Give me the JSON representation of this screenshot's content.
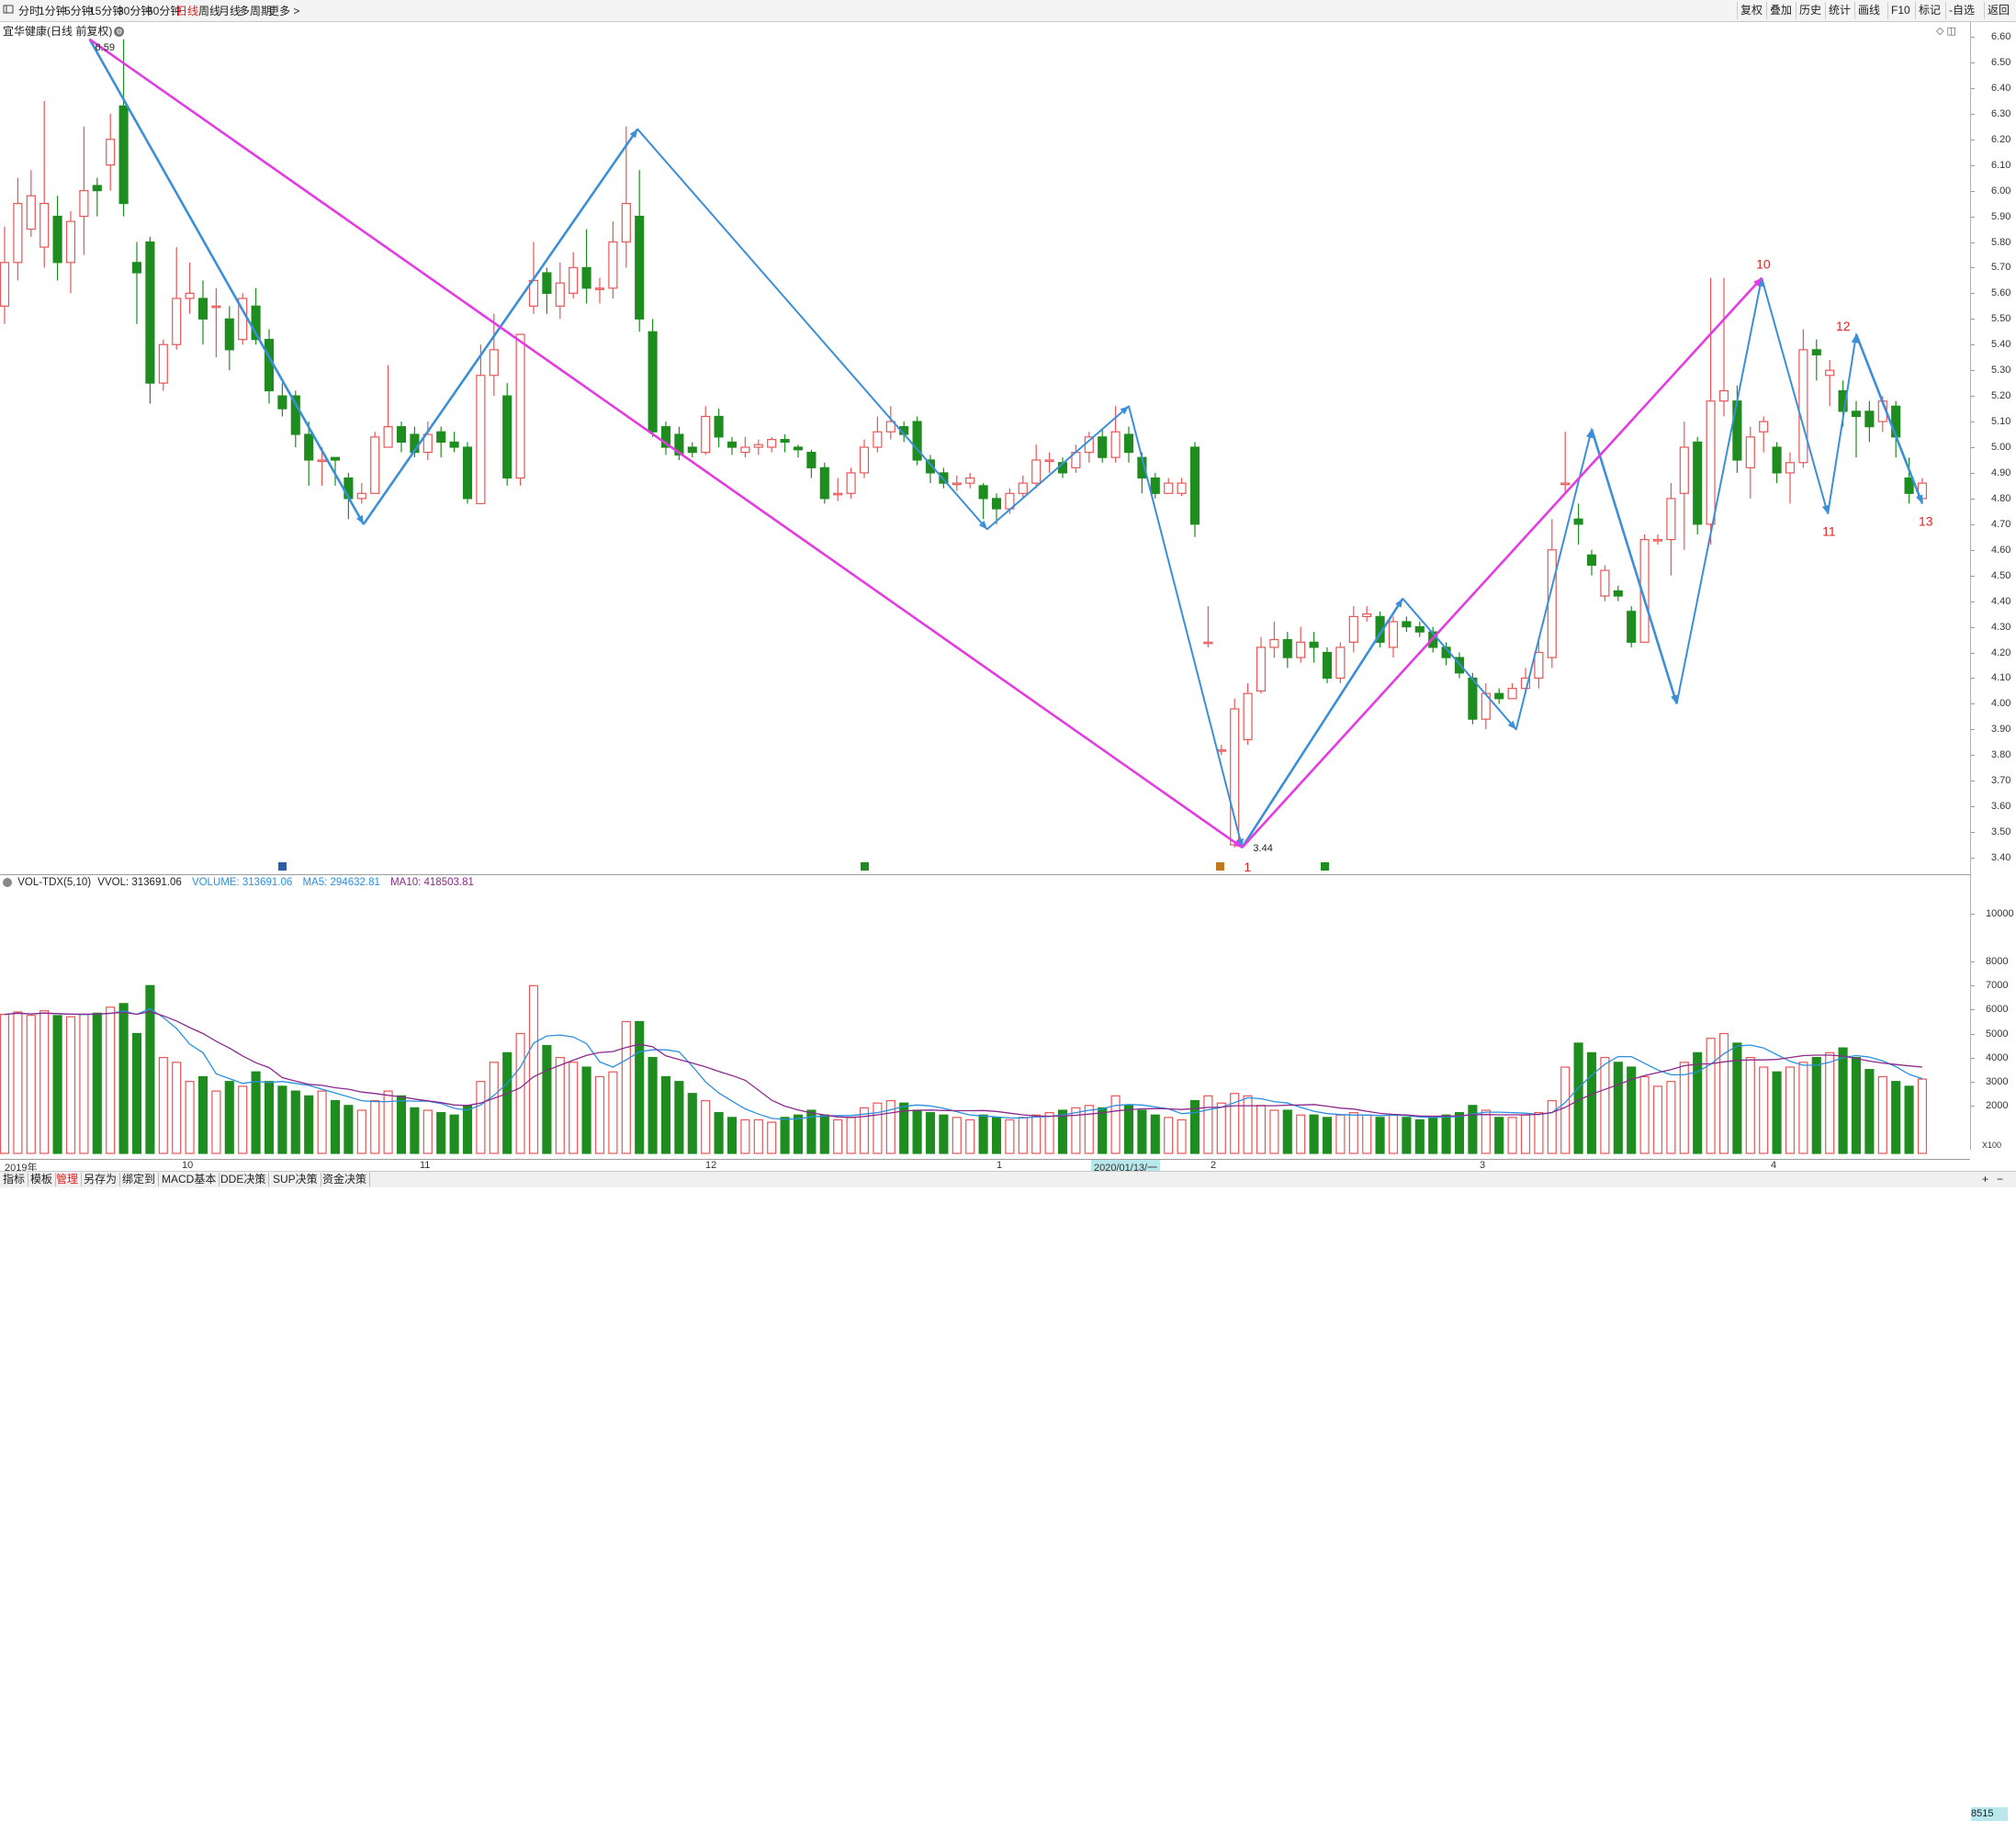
{
  "toolbar": {
    "left": [
      {
        "label": "分时",
        "active": false
      },
      {
        "label": "1分钟",
        "active": false
      },
      {
        "label": "5分钟",
        "active": false
      },
      {
        "label": "15分钟",
        "active": false
      },
      {
        "label": "30分钟",
        "active": false
      },
      {
        "label": "60分钟",
        "active": false
      },
      {
        "label": "日线",
        "active": true
      },
      {
        "label": "周线",
        "active": false
      },
      {
        "label": "月线",
        "active": false
      },
      {
        "label": "多周期",
        "active": false
      },
      {
        "label": "更多 >",
        "active": false
      }
    ],
    "right": [
      "复权",
      "叠加",
      "历史",
      "统计",
      "画线",
      "F10",
      "标记",
      "-自选",
      "返回"
    ]
  },
  "stock_title": "宜华健康(日线 前复权)",
  "price_axis_ticks": [
    "6.60",
    "6.50",
    "6.40",
    "6.30",
    "6.20",
    "6.10",
    "6.00",
    "5.90",
    "5.80",
    "5.70",
    "5.60",
    "5.50",
    "5.40",
    "5.30",
    "5.20",
    "5.10",
    "5.00",
    "4.90",
    "4.80",
    "4.70",
    "4.60",
    "4.50",
    "4.40",
    "4.30",
    "4.20",
    "4.10",
    "4.00",
    "3.90",
    "3.80",
    "3.70",
    "3.60",
    "3.50",
    "3.40"
  ],
  "annotations": {
    "high_label": "6.59",
    "low_label": "3.44",
    "wave_points": [
      "1",
      "10",
      "11",
      "12",
      "13"
    ]
  },
  "volume_header": {
    "name": "VOL-TDX(5,10)",
    "vvol": "VVOL: 313691.06",
    "volume": "VOLUME: 313691.06",
    "ma5": "MA5: 294632.81",
    "ma10": "MA10: 418503.81"
  },
  "volume_axis_ticks": [
    "10000",
    "8000",
    "7000",
    "6000",
    "5000",
    "4000",
    "3000",
    "2000"
  ],
  "volume_axis_current": "8515",
  "volume_axis_unit": "X100",
  "date_axis": {
    "labels": [
      "2019年",
      "10",
      "11",
      "12",
      "1",
      "2",
      "3",
      "4"
    ],
    "highlight": "2020/01/13/一"
  },
  "bottom_tabs": [
    {
      "label": "指标",
      "active": false
    },
    {
      "label": "模板",
      "active": false
    },
    {
      "label": "管理",
      "active": true
    },
    {
      "label": "另存为",
      "active": false
    },
    {
      "label": "绑定到",
      "active": false
    },
    {
      "label": "MACD基本",
      "active": false
    },
    {
      "label": "DDE决策",
      "active": false
    },
    {
      "label": "SUP决策",
      "active": false
    },
    {
      "label": "资金决策",
      "active": false
    }
  ],
  "colors": {
    "up": "#e85656",
    "down": "#1f8c1f",
    "zigzag": "#3b8fd8",
    "trend": "#e23ce2",
    "ma5": "#2a8fe0",
    "ma10": "#8b2a8b",
    "wave_label": "#e02020"
  },
  "chart_data": {
    "type": "candlestick",
    "price_range": [
      3.4,
      6.6
    ],
    "candles": [
      [
        5.55,
        5.72,
        5.86,
        5.48,
        5.8
      ],
      [
        5.72,
        5.95,
        6.05,
        5.65,
        5.9
      ],
      [
        5.85,
        5.98,
        6.08,
        5.82,
        5.76
      ],
      [
        5.78,
        5.95,
        6.35,
        5.7,
        5.95
      ],
      [
        5.9,
        5.72,
        5.98,
        5.65,
        5.75
      ],
      [
        5.72,
        5.88,
        5.92,
        5.6,
        5.7
      ],
      [
        5.9,
        6.0,
        6.25,
        5.75,
        5.8
      ],
      [
        6.02,
        6.0,
        6.05,
        5.9,
        5.85
      ],
      [
        6.1,
        6.2,
        6.3,
        6.0,
        6.1
      ],
      [
        6.33,
        5.95,
        6.59,
        5.9,
        6.25
      ],
      [
        5.72,
        5.68,
        5.8,
        5.48,
        5.0
      ],
      [
        5.8,
        5.25,
        5.82,
        5.17,
        7.0
      ],
      [
        5.25,
        5.4,
        5.42,
        5.22,
        4.0
      ],
      [
        5.4,
        5.58,
        5.78,
        5.38,
        3.8
      ],
      [
        5.58,
        5.6,
        5.72,
        5.52,
        3.0
      ],
      [
        5.58,
        5.5,
        5.65,
        5.4,
        3.2
      ],
      [
        5.55,
        5.55,
        5.62,
        5.35,
        2.6
      ],
      [
        5.5,
        5.38,
        5.55,
        5.3,
        3.0
      ],
      [
        5.42,
        5.58,
        5.6,
        5.4,
        2.8
      ],
      [
        5.55,
        5.42,
        5.62,
        5.4,
        3.4
      ],
      [
        5.42,
        5.22,
        5.46,
        5.17,
        3.0
      ],
      [
        5.2,
        5.15,
        5.25,
        5.12,
        2.8
      ],
      [
        5.2,
        5.05,
        5.22,
        5.0,
        2.6
      ],
      [
        5.05,
        4.95,
        5.1,
        4.85,
        2.4
      ],
      [
        4.95,
        4.95,
        5.0,
        4.85,
        2.6
      ],
      [
        4.96,
        4.95,
        4.96,
        4.85,
        2.2
      ],
      [
        4.88,
        4.8,
        4.9,
        4.72,
        2.0
      ],
      [
        4.8,
        4.82,
        4.86,
        4.78,
        1.8
      ],
      [
        4.82,
        5.04,
        5.06,
        4.82,
        2.2
      ],
      [
        5.0,
        5.08,
        5.32,
        5.0,
        2.6
      ],
      [
        5.08,
        5.02,
        5.1,
        4.98,
        2.4
      ],
      [
        5.05,
        4.98,
        5.08,
        4.96,
        1.9
      ],
      [
        4.98,
        5.05,
        5.1,
        4.95,
        1.8
      ],
      [
        5.06,
        5.02,
        5.08,
        4.96,
        1.7
      ],
      [
        5.02,
        5.0,
        5.06,
        4.98,
        1.6
      ],
      [
        5.0,
        4.8,
        5.02,
        4.78,
        2.0
      ],
      [
        4.78,
        5.28,
        5.4,
        4.78,
        3.0
      ],
      [
        5.28,
        5.38,
        5.52,
        5.2,
        3.8
      ],
      [
        5.2,
        4.88,
        5.25,
        4.85,
        4.2
      ],
      [
        4.88,
        5.44,
        5.44,
        4.85,
        5.0
      ],
      [
        5.55,
        5.65,
        5.8,
        5.52,
        7.0
      ],
      [
        5.68,
        5.6,
        5.7,
        5.52,
        4.5
      ],
      [
        5.55,
        5.64,
        5.72,
        5.5,
        4.0
      ],
      [
        5.6,
        5.7,
        5.76,
        5.58,
        3.8
      ],
      [
        5.7,
        5.62,
        5.85,
        5.56,
        3.6
      ],
      [
        5.62,
        5.62,
        5.66,
        5.56,
        3.2
      ],
      [
        5.62,
        5.8,
        5.88,
        5.58,
        3.4
      ],
      [
        5.8,
        5.95,
        6.25,
        5.7,
        5.5
      ],
      [
        5.9,
        5.5,
        6.08,
        5.45,
        5.5
      ],
      [
        5.45,
        5.06,
        5.5,
        5.04,
        4.0
      ],
      [
        5.08,
        5.0,
        5.1,
        4.97,
        3.2
      ],
      [
        5.05,
        4.97,
        5.08,
        4.95,
        3.0
      ],
      [
        5.0,
        4.98,
        5.02,
        4.96,
        2.5
      ],
      [
        4.98,
        5.12,
        5.16,
        4.97,
        2.2
      ],
      [
        5.12,
        5.04,
        5.15,
        5.0,
        1.7
      ],
      [
        5.02,
        5.0,
        5.04,
        4.97,
        1.5
      ],
      [
        4.98,
        5.0,
        5.04,
        4.96,
        1.4
      ],
      [
        5.0,
        5.01,
        5.03,
        4.97,
        1.4
      ],
      [
        5.0,
        5.03,
        5.04,
        4.98,
        1.3
      ],
      [
        5.03,
        5.02,
        5.05,
        4.98,
        1.5
      ],
      [
        5.0,
        4.99,
        5.01,
        4.96,
        1.6
      ],
      [
        4.98,
        4.92,
        4.99,
        4.88,
        1.8
      ],
      [
        4.92,
        4.8,
        4.94,
        4.78,
        1.6
      ],
      [
        4.82,
        4.82,
        4.88,
        4.79,
        1.4
      ],
      [
        4.82,
        4.9,
        4.92,
        4.8,
        1.5
      ],
      [
        4.9,
        5.0,
        5.03,
        4.88,
        1.9
      ],
      [
        5.0,
        5.06,
        5.12,
        4.98,
        2.1
      ],
      [
        5.06,
        5.1,
        5.16,
        5.03,
        2.2
      ],
      [
        5.08,
        5.05,
        5.1,
        5.02,
        2.1
      ],
      [
        5.1,
        4.95,
        5.12,
        4.93,
        1.8
      ],
      [
        4.95,
        4.9,
        4.97,
        4.86,
        1.7
      ],
      [
        4.9,
        4.86,
        4.92,
        4.84,
        1.6
      ],
      [
        4.86,
        4.86,
        4.89,
        4.83,
        1.5
      ],
      [
        4.86,
        4.88,
        4.9,
        4.84,
        1.4
      ],
      [
        4.85,
        4.8,
        4.86,
        4.72,
        1.6
      ],
      [
        4.8,
        4.76,
        4.82,
        4.7,
        1.5
      ],
      [
        4.76,
        4.82,
        4.84,
        4.74,
        1.4
      ],
      [
        4.82,
        4.86,
        4.89,
        4.8,
        1.5
      ],
      [
        4.86,
        4.95,
        5.01,
        4.84,
        1.6
      ],
      [
        4.95,
        4.95,
        4.98,
        4.9,
        1.7
      ],
      [
        4.94,
        4.9,
        4.96,
        4.88,
        1.8
      ],
      [
        4.92,
        4.98,
        5.01,
        4.9,
        1.9
      ],
      [
        4.98,
        5.04,
        5.06,
        4.94,
        2.0
      ],
      [
        5.04,
        4.96,
        5.07,
        4.94,
        1.9
      ],
      [
        4.96,
        5.06,
        5.16,
        4.94,
        2.4
      ],
      [
        5.05,
        4.98,
        5.08,
        4.94,
        2.0
      ],
      [
        4.96,
        4.88,
        4.98,
        4.82,
        1.8
      ],
      [
        4.88,
        4.82,
        4.9,
        4.8,
        1.6
      ],
      [
        4.82,
        4.86,
        4.88,
        4.82,
        1.5
      ],
      [
        4.82,
        4.86,
        4.88,
        4.81,
        1.4
      ],
      [
        5.0,
        4.7,
        5.02,
        4.65,
        2.2
      ],
      [
        4.24,
        4.24,
        4.38,
        4.22,
        2.4
      ],
      [
        3.82,
        3.82,
        3.84,
        3.8,
        2.1
      ],
      [
        3.45,
        3.98,
        4.02,
        3.44,
        2.5
      ],
      [
        3.86,
        4.04,
        4.08,
        3.84,
        2.4
      ],
      [
        4.05,
        4.22,
        4.26,
        4.04,
        2.0
      ],
      [
        4.22,
        4.25,
        4.32,
        4.18,
        1.8
      ],
      [
        4.25,
        4.18,
        4.28,
        4.14,
        1.8
      ],
      [
        4.18,
        4.24,
        4.3,
        4.16,
        1.6
      ],
      [
        4.24,
        4.22,
        4.28,
        4.16,
        1.6
      ],
      [
        4.2,
        4.1,
        4.22,
        4.08,
        1.5
      ],
      [
        4.1,
        4.22,
        4.24,
        4.08,
        1.6
      ],
      [
        4.24,
        4.34,
        4.38,
        4.2,
        1.7
      ],
      [
        4.34,
        4.35,
        4.38,
        4.32,
        1.6
      ],
      [
        4.34,
        4.24,
        4.36,
        4.22,
        1.5
      ],
      [
        4.22,
        4.32,
        4.34,
        4.18,
        1.6
      ],
      [
        4.32,
        4.3,
        4.34,
        4.28,
        1.5
      ],
      [
        4.3,
        4.28,
        4.32,
        4.26,
        1.4
      ],
      [
        4.28,
        4.22,
        4.3,
        4.2,
        1.5
      ],
      [
        4.22,
        4.18,
        4.24,
        4.15,
        1.6
      ],
      [
        4.18,
        4.12,
        4.2,
        4.1,
        1.7
      ],
      [
        4.1,
        3.94,
        4.12,
        3.92,
        2.0
      ],
      [
        3.94,
        4.04,
        4.08,
        3.9,
        1.8
      ],
      [
        4.04,
        4.02,
        4.06,
        4.0,
        1.5
      ],
      [
        4.02,
        4.06,
        4.08,
        4.02,
        1.5
      ],
      [
        4.06,
        4.1,
        4.14,
        4.04,
        1.6
      ],
      [
        4.1,
        4.2,
        4.26,
        4.06,
        1.7
      ],
      [
        4.18,
        4.6,
        4.72,
        4.14,
        2.2
      ],
      [
        4.86,
        4.86,
        5.06,
        4.82,
        3.6
      ],
      [
        4.72,
        4.7,
        4.78,
        4.62,
        4.6
      ],
      [
        4.58,
        4.54,
        4.6,
        4.5,
        4.2
      ],
      [
        4.42,
        4.52,
        4.54,
        4.4,
        4.0
      ],
      [
        4.44,
        4.42,
        4.46,
        4.4,
        3.8
      ],
      [
        4.36,
        4.24,
        4.38,
        4.22,
        3.6
      ],
      [
        4.24,
        4.64,
        4.66,
        4.24,
        3.2
      ],
      [
        4.64,
        4.64,
        4.66,
        4.62,
        2.8
      ],
      [
        4.64,
        4.8,
        4.86,
        4.5,
        3.0
      ],
      [
        4.82,
        5.0,
        5.1,
        4.6,
        3.8
      ],
      [
        5.02,
        4.7,
        5.04,
        4.66,
        4.2
      ],
      [
        4.7,
        5.18,
        5.66,
        4.62,
        4.8
      ],
      [
        5.18,
        5.22,
        5.66,
        5.12,
        5.0
      ],
      [
        5.18,
        4.95,
        5.24,
        4.9,
        4.6
      ],
      [
        4.92,
        5.04,
        5.08,
        4.8,
        4.0
      ],
      [
        5.06,
        5.1,
        5.12,
        4.98,
        3.6
      ],
      [
        5.0,
        4.9,
        5.02,
        4.86,
        3.4
      ],
      [
        4.9,
        4.94,
        4.98,
        4.78,
        3.6
      ],
      [
        4.94,
        5.38,
        5.46,
        4.92,
        3.8
      ],
      [
        5.38,
        5.36,
        5.42,
        5.26,
        4.0
      ],
      [
        5.28,
        5.3,
        5.34,
        5.16,
        4.2
      ],
      [
        5.22,
        5.14,
        5.26,
        5.08,
        4.4
      ],
      [
        5.14,
        5.12,
        5.18,
        4.96,
        4.0
      ],
      [
        5.14,
        5.08,
        5.18,
        5.02,
        3.5
      ],
      [
        5.1,
        5.18,
        5.2,
        5.06,
        3.2
      ],
      [
        5.16,
        5.04,
        5.18,
        4.96,
        3.0
      ],
      [
        4.88,
        4.82,
        4.96,
        4.78,
        2.8
      ],
      [
        4.8,
        4.86,
        4.88,
        4.78,
        3.1
      ]
    ]
  }
}
